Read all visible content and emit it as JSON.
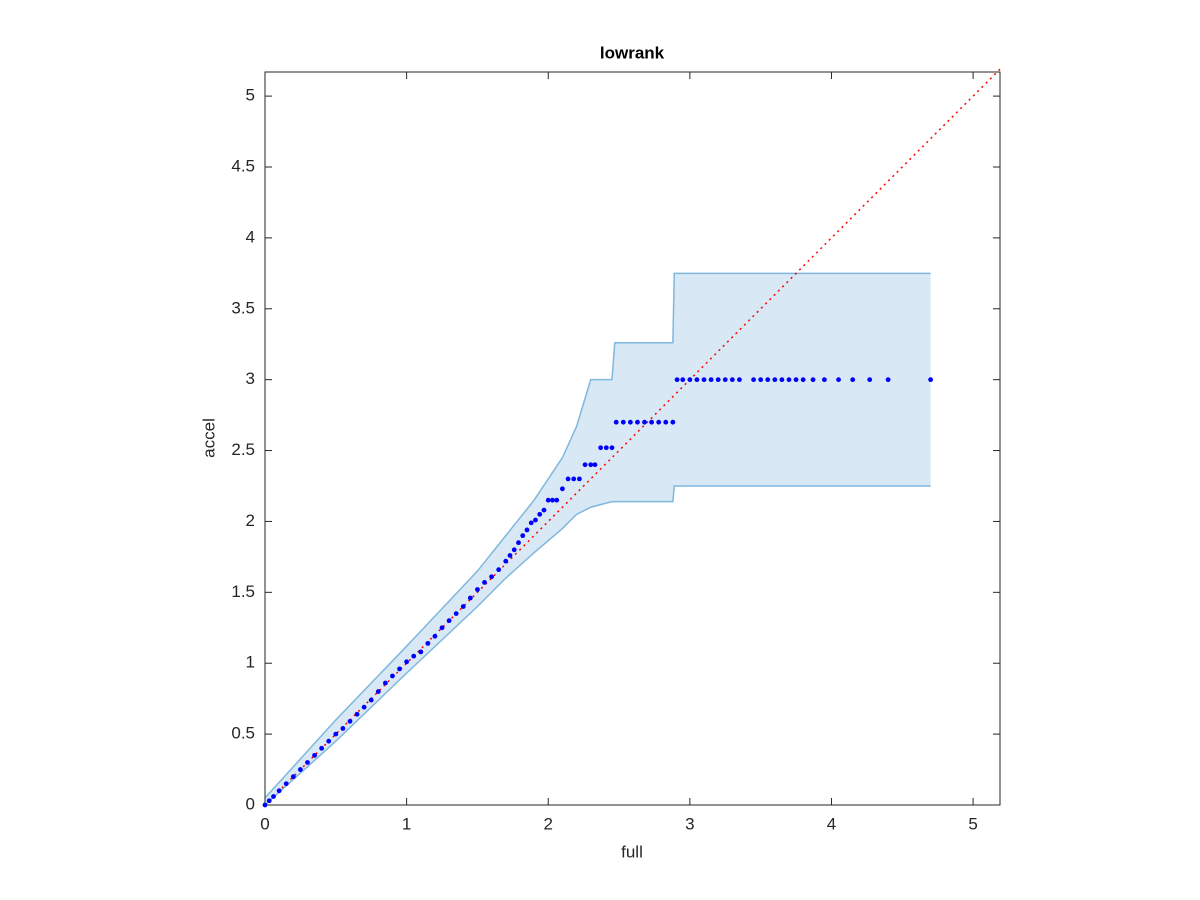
{
  "chart_data": {
    "type": "scatter",
    "title": "lowrank",
    "xlabel": "full",
    "ylabel": "accel",
    "xlim": [
      0,
      5.19
    ],
    "ylim": [
      0,
      5.17
    ],
    "xticks": [
      0,
      1,
      2,
      3,
      4,
      5
    ],
    "yticks": [
      0,
      0.5,
      1,
      1.5,
      2,
      2.5,
      3,
      3.5,
      4,
      4.5,
      5
    ],
    "color": "#0000ff",
    "x": [
      0,
      0.03,
      0.06,
      0.1,
      0.15,
      0.2,
      0.25,
      0.3,
      0.35,
      0.4,
      0.45,
      0.5,
      0.55,
      0.6,
      0.65,
      0.7,
      0.75,
      0.8,
      0.85,
      0.9,
      0.95,
      1.0,
      1.05,
      1.1,
      1.15,
      1.2,
      1.25,
      1.3,
      1.35,
      1.4,
      1.45,
      1.5,
      1.55,
      1.6,
      1.65,
      1.7,
      1.73,
      1.76,
      1.79,
      1.82,
      1.85,
      1.88,
      1.91,
      1.94,
      1.97,
      2.0,
      2.03,
      2.06,
      2.1,
      2.14,
      2.18,
      2.22,
      2.26,
      2.3,
      2.33,
      2.37,
      2.41,
      2.45,
      2.48,
      2.53,
      2.58,
      2.63,
      2.68,
      2.73,
      2.78,
      2.83,
      2.88,
      2.91,
      2.95,
      3.0,
      3.05,
      3.1,
      3.15,
      3.2,
      3.25,
      3.3,
      3.35,
      3.45,
      3.5,
      3.55,
      3.6,
      3.65,
      3.7,
      3.75,
      3.8,
      3.87,
      3.95,
      4.05,
      4.15,
      4.27,
      4.4,
      4.7
    ],
    "y": [
      0,
      0.03,
      0.06,
      0.1,
      0.15,
      0.2,
      0.25,
      0.3,
      0.35,
      0.4,
      0.45,
      0.5,
      0.54,
      0.59,
      0.64,
      0.69,
      0.74,
      0.8,
      0.86,
      0.91,
      0.96,
      1.01,
      1.05,
      1.08,
      1.14,
      1.19,
      1.25,
      1.3,
      1.35,
      1.4,
      1.46,
      1.52,
      1.57,
      1.61,
      1.66,
      1.72,
      1.76,
      1.8,
      1.85,
      1.9,
      1.94,
      1.99,
      2.01,
      2.05,
      2.08,
      2.15,
      2.15,
      2.15,
      2.23,
      2.3,
      2.3,
      2.3,
      2.4,
      2.4,
      2.4,
      2.52,
      2.52,
      2.52,
      2.7,
      2.7,
      2.7,
      2.7,
      2.7,
      2.7,
      2.7,
      2.7,
      2.7,
      3.0,
      3.0,
      3.0,
      3.0,
      3.0,
      3.0,
      3.0,
      3.0,
      3.0,
      3.0,
      3.0,
      3.0,
      3.0,
      3.0,
      3.0,
      3.0,
      3.0,
      3.0,
      3.0,
      3.0,
      3.0,
      3.0,
      3.0,
      3.0,
      3.0
    ],
    "band": {
      "color": "#7fb7dd",
      "x": [
        0,
        0.5,
        1.0,
        1.5,
        1.7,
        1.9,
        2.1,
        2.2,
        2.3,
        2.45,
        2.47,
        2.88,
        2.89,
        4.7
      ],
      "upper": [
        0.05,
        0.6,
        1.12,
        1.65,
        1.9,
        2.15,
        2.45,
        2.67,
        3.0,
        3.0,
        3.26,
        3.26,
        3.75,
        3.75
      ],
      "lower": [
        0,
        0.45,
        0.93,
        1.4,
        1.6,
        1.78,
        1.95,
        2.05,
        2.1,
        2.14,
        2.14,
        2.14,
        2.25,
        2.25
      ]
    },
    "reference": {
      "color": "#ff0000",
      "x": [
        0,
        5.19
      ],
      "y": [
        0,
        5.19
      ]
    }
  }
}
